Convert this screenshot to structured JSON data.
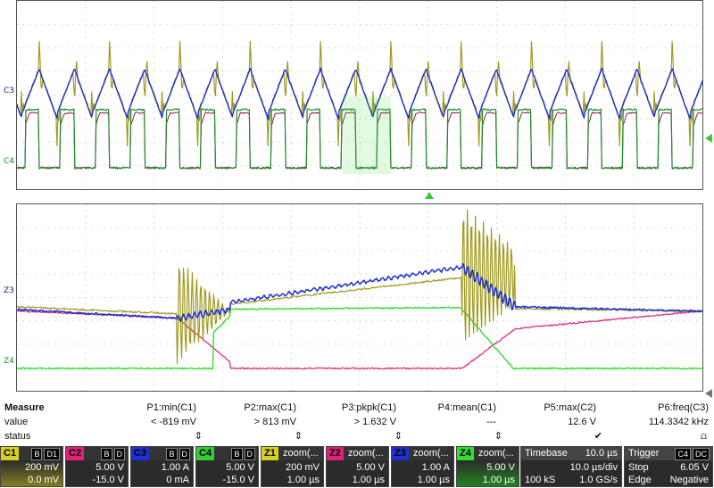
{
  "colors": {
    "c1": "#a09a20",
    "c2": "#e0207a",
    "c3": "#1f2fd0",
    "c4": "#1e8a2a",
    "z4": "#33dd33",
    "z2": "#e0207a",
    "z3": "#1f2fd0"
  },
  "markers": {
    "top_c3": "C3",
    "top_c4": "C4",
    "bottom_z3": "Z3",
    "bottom_z4": "Z4"
  },
  "measure": {
    "header": {
      "label": "Measure",
      "p1": "P1:min(C1)",
      "p2": "P2:max(C1)",
      "p3": "P3:pkpk(C1)",
      "p4": "P4:mean(C1)",
      "p5": "P5:max(C2)",
      "p6": "P6:freq(C3)"
    },
    "value": {
      "label": "value",
      "p1": "< -819 mV",
      "p2": "> 813 mV",
      "p3": "> 1.632 V",
      "p4": "---",
      "p5": "12.6 V",
      "p6": "114.3342 kHz"
    },
    "status": {
      "label": "status",
      "p1": "⇕",
      "p2": "⇕",
      "p3": "⇕",
      "p4": "⇕",
      "p5": "✔",
      "p6": "⩍"
    }
  },
  "channels": [
    {
      "id": "C1",
      "color": "#d8d020",
      "badges": [
        "B",
        "D1"
      ],
      "scale": "200 mV",
      "offset": "0.0 mV",
      "text": ""
    },
    {
      "id": "C2",
      "color": "#e0207a",
      "badges": [
        "B",
        "D"
      ],
      "scale": "5.00 V",
      "offset": "-15.0 V",
      "text": ""
    },
    {
      "id": "C3",
      "color": "#1f2fd0",
      "badges": [
        "B",
        "D"
      ],
      "scale": "1.00 A",
      "offset": "0 mA",
      "text": ""
    },
    {
      "id": "C4",
      "color": "#33cc33",
      "badges": [
        "B",
        "D"
      ],
      "scale": "5.00 V",
      "offset": "-15.0 V",
      "text": ""
    },
    {
      "id": "Z1",
      "color": "#d8d020",
      "badges": [],
      "scale": "200 mV",
      "offset": "1.00 µs",
      "text": "zoom(..."
    },
    {
      "id": "Z2",
      "color": "#e0207a",
      "badges": [],
      "scale": "5.00 V",
      "offset": "1.00 µs",
      "text": "zoom(..."
    },
    {
      "id": "Z3",
      "color": "#1f2fd0",
      "badges": [],
      "scale": "1.00 A",
      "offset": "1.00 µs",
      "text": "zoom(..."
    },
    {
      "id": "Z4",
      "color": "#33dd33",
      "badges": [],
      "scale": "5.00 V",
      "offset": "1.00 µs",
      "text": "zoom(..."
    }
  ],
  "timebase": {
    "label": "Timebase",
    "value": "10.0 µs",
    "per_div": "10.0 µs/div",
    "samples": "100 kS",
    "rate": "1.0 GS/s"
  },
  "trigger": {
    "label": "Trigger",
    "badge1": "C4",
    "badge2": "DC",
    "mode": "Stop",
    "level": "6.05 V",
    "type": "Edge",
    "slope": "Negative"
  }
}
